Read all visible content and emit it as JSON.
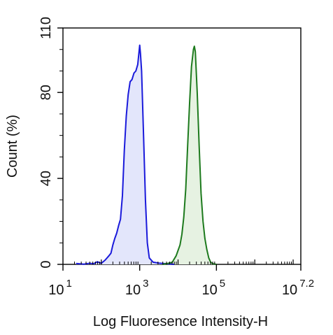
{
  "chart_data": {
    "type": "area",
    "title": "",
    "xlabel": "Log Fluoresence Intensity-H",
    "ylabel": "Count  (%)",
    "x_scale": "log10",
    "xlim": [
      10,
      15848931.9
    ],
    "ylim": [
      0,
      110
    ],
    "x_ticks": [
      {
        "value": 10,
        "base": "10",
        "exp": "1"
      },
      {
        "value": 1000,
        "base": "10",
        "exp": "3"
      },
      {
        "value": 100000,
        "base": "10",
        "exp": "5"
      },
      {
        "value": 15848931.9,
        "base": "10",
        "exp": "7.2"
      }
    ],
    "y_ticks": [
      {
        "value": 0,
        "label": "0"
      },
      {
        "value": 40,
        "label": "40"
      },
      {
        "value": 80,
        "label": "80"
      },
      {
        "value": 110,
        "label": "110"
      }
    ],
    "grid": false,
    "legend": "none",
    "series": [
      {
        "color": "#1a1adb",
        "fill": "#e3e6fb",
        "points": [
          [
            22,
            0.4
          ],
          [
            35,
            0.1
          ],
          [
            50,
            0.5
          ],
          [
            63,
            0.3
          ],
          [
            79,
            1.2
          ],
          [
            100,
            0.5
          ],
          [
            126,
            2.0
          ],
          [
            158,
            4.0
          ],
          [
            178,
            5.2
          ],
          [
            200,
            9.0
          ],
          [
            224,
            12.0
          ],
          [
            251,
            14.5
          ],
          [
            282,
            18.0
          ],
          [
            316,
            21.0
          ],
          [
            355,
            32.0
          ],
          [
            398,
            53.0
          ],
          [
            447,
            69.0
          ],
          [
            501,
            79.0
          ],
          [
            562,
            85.0
          ],
          [
            631,
            86.0
          ],
          [
            708,
            89.0
          ],
          [
            794,
            90.0
          ],
          [
            891,
            93.0
          ],
          [
            1000,
            102.0
          ],
          [
            1047,
            98.0
          ],
          [
            1122,
            90.0
          ],
          [
            1259,
            60.0
          ],
          [
            1413,
            30.0
          ],
          [
            1585,
            10.0
          ],
          [
            1778,
            3.0
          ],
          [
            2239,
            1.0
          ],
          [
            3162,
            0.6
          ],
          [
            5012,
            0.3
          ],
          [
            7943,
            0.0
          ]
        ]
      },
      {
        "color": "#1d7a1d",
        "fill": "#e6f2e2",
        "points": [
          [
            3981,
            0.0
          ],
          [
            5623,
            0.5
          ],
          [
            7079,
            1.0
          ],
          [
            8913,
            4.0
          ],
          [
            11220,
            9.0
          ],
          [
            12590,
            14.0
          ],
          [
            14125,
            22.0
          ],
          [
            15849,
            35.0
          ],
          [
            17783,
            55.0
          ],
          [
            19953,
            75.0
          ],
          [
            22387,
            92.0
          ],
          [
            25119,
            100.0
          ],
          [
            26607,
            101.5
          ],
          [
            28184,
            99.0
          ],
          [
            31623,
            80.0
          ],
          [
            35481,
            55.0
          ],
          [
            39811,
            33.0
          ],
          [
            44668,
            20.0
          ],
          [
            50119,
            12.0
          ],
          [
            56234,
            7.0
          ],
          [
            63096,
            3.0
          ],
          [
            70795,
            1.0
          ],
          [
            79433,
            0.3
          ],
          [
            100000,
            0.0
          ]
        ]
      }
    ]
  }
}
